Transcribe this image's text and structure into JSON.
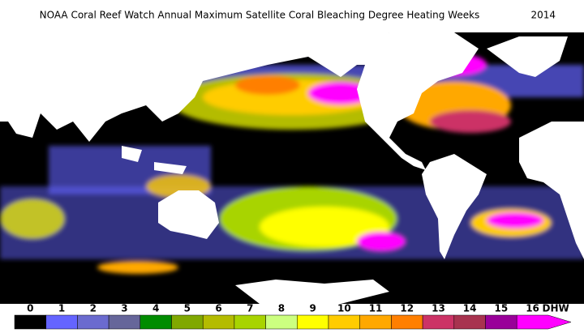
{
  "title": "NOAA Coral Reef Watch Annual Maximum Satellite Coral Bleaching Degree Heating Weeks",
  "year": "2014",
  "colorbar": {
    "unit": "DHW",
    "ticks": [
      {
        "value": 0,
        "color": "#000000"
      },
      {
        "value": 1,
        "color": "#6464ff"
      },
      {
        "value": 2,
        "color": "#6b6bcf"
      },
      {
        "value": 3,
        "color": "#66669a"
      },
      {
        "value": 4,
        "color": "#008c00"
      },
      {
        "value": 5,
        "color": "#80a800"
      },
      {
        "value": 6,
        "color": "#b4bc00"
      },
      {
        "value": 7,
        "color": "#a8d400"
      },
      {
        "value": 8,
        "color": "#ccff80"
      },
      {
        "value": 9,
        "color": "#ffff00"
      },
      {
        "value": 10,
        "color": "#ffcc00"
      },
      {
        "value": 11,
        "color": "#ffa800"
      },
      {
        "value": 12,
        "color": "#ff7f00"
      },
      {
        "value": 13,
        "color": "#cc3366"
      },
      {
        "value": 14,
        "color": "#a8334f"
      },
      {
        "value": 15,
        "color": "#990099"
      },
      {
        "value": 16,
        "color": "#ff00ff"
      }
    ]
  }
}
